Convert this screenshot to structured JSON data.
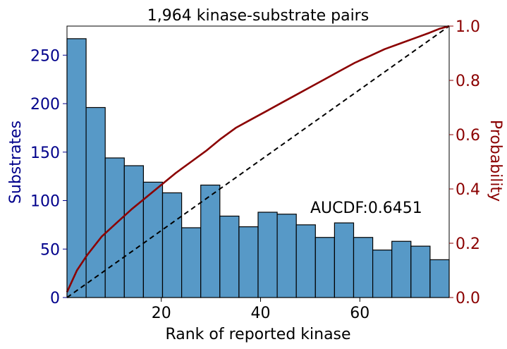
{
  "chart_data": {
    "type": "bar",
    "title": "1,964 kinase-substrate pairs",
    "xlabel": "Rank of reported kinase",
    "ylabel_left": "Substrates",
    "ylabel_right": "Probability",
    "annotation": "AUCDF:0.6451",
    "xlim": [
      1,
      78
    ],
    "ylim_left": [
      0,
      280
    ],
    "ylim_right": [
      0,
      1.0
    ],
    "x_ticks": [
      20,
      40,
      60
    ],
    "y_ticks_left": [
      0,
      50,
      100,
      150,
      200,
      250
    ],
    "y_ticks_right": [
      "0.0",
      "0.2",
      "0.4",
      "0.6",
      "0.8",
      "1.0"
    ],
    "bin_edges": [
      1,
      4.85,
      8.7,
      12.55,
      16.4,
      20.25,
      24.1,
      27.95,
      31.8,
      35.65,
      39.5,
      43.35,
      47.2,
      51.05,
      54.9,
      58.75,
      62.6,
      66.45,
      70.3,
      74.15,
      78
    ],
    "bar_values": [
      267,
      196,
      144,
      136,
      119,
      108,
      72,
      116,
      84,
      73,
      88,
      86,
      75,
      62,
      77,
      62,
      49,
      58,
      53,
      39
    ],
    "cdf": {
      "x": [
        1,
        3,
        5,
        8,
        11,
        14,
        17,
        20,
        23,
        26,
        29,
        32,
        35,
        38,
        41,
        44,
        47,
        50,
        53,
        56,
        59,
        62,
        65,
        68,
        71,
        74,
        76,
        78
      ],
      "y": [
        0.02,
        0.1,
        0.155,
        0.225,
        0.275,
        0.325,
        0.37,
        0.415,
        0.46,
        0.5,
        0.54,
        0.585,
        0.625,
        0.655,
        0.685,
        0.715,
        0.745,
        0.775,
        0.805,
        0.835,
        0.865,
        0.89,
        0.915,
        0.935,
        0.955,
        0.975,
        0.99,
        1.0
      ]
    },
    "diagonal": {
      "x": [
        1,
        78
      ],
      "y": [
        0.0,
        1.0
      ]
    },
    "colors": {
      "bars": "#5799c7",
      "bar_edge": "#000000",
      "cdf": "#8b0000",
      "diagonal": "#000000",
      "left_axis": "#00008b",
      "right_axis": "#8b0000"
    }
  }
}
